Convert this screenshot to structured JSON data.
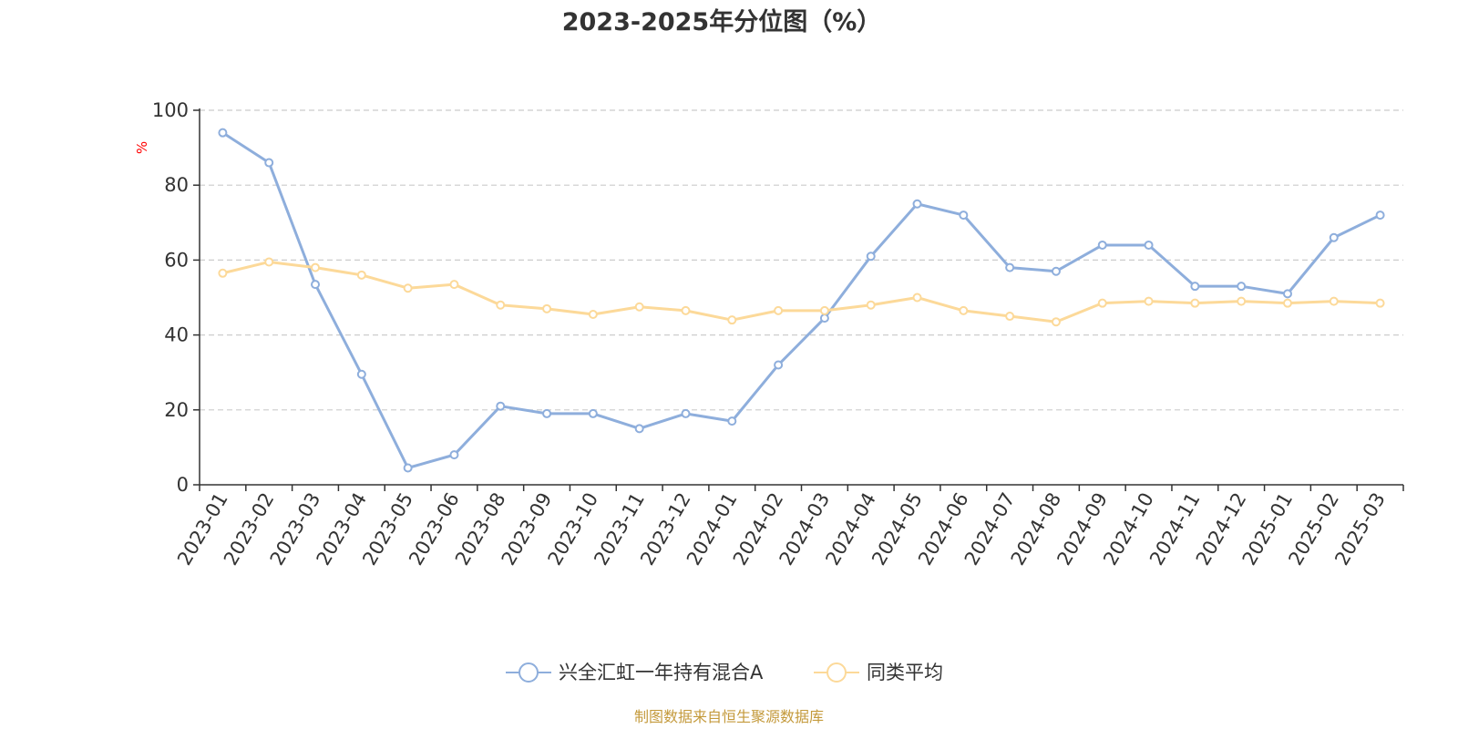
{
  "chart_data": {
    "type": "line",
    "title": "2023-2025年分位图（%）",
    "ylabel": "%",
    "xlabel": "",
    "ylim": [
      0,
      100
    ],
    "yticks": [
      0,
      20,
      40,
      60,
      80,
      100
    ],
    "grid": true,
    "legend_position": "bottom-center",
    "categories": [
      "2023-01",
      "2023-02",
      "2023-03",
      "2023-04",
      "2023-05",
      "2023-06",
      "2023-08",
      "2023-09",
      "2023-10",
      "2023-11",
      "2023-12",
      "2024-01",
      "2024-02",
      "2024-03",
      "2024-04",
      "2024-05",
      "2024-06",
      "2024-07",
      "2024-08",
      "2024-09",
      "2024-10",
      "2024-11",
      "2024-12",
      "2025-01",
      "2025-02",
      "2025-03"
    ],
    "series": [
      {
        "name": "兴全汇虹一年持有混合A",
        "color": "#8eaedc",
        "values": [
          94,
          86,
          53.5,
          29.5,
          4.5,
          8,
          21,
          19,
          19,
          15,
          19,
          17,
          32,
          44.5,
          61,
          75,
          72,
          58,
          57,
          64,
          64,
          53,
          53,
          51,
          66,
          72
        ]
      },
      {
        "name": "同类平均",
        "color": "#fcd999",
        "values": [
          56.5,
          59.5,
          58,
          56,
          52.5,
          53.5,
          48,
          47,
          45.5,
          47.5,
          46.5,
          44,
          46.5,
          46.5,
          48,
          50,
          46.5,
          45,
          43.5,
          48.5,
          49,
          48.5,
          49,
          48.5,
          49,
          48.5
        ]
      }
    ]
  },
  "source_text": "制图数据来自恒生聚源数据库",
  "colors": {
    "axis": "#333333",
    "grid": "#cccccc",
    "unit": "#ff0000",
    "source": "#c49a3c"
  }
}
